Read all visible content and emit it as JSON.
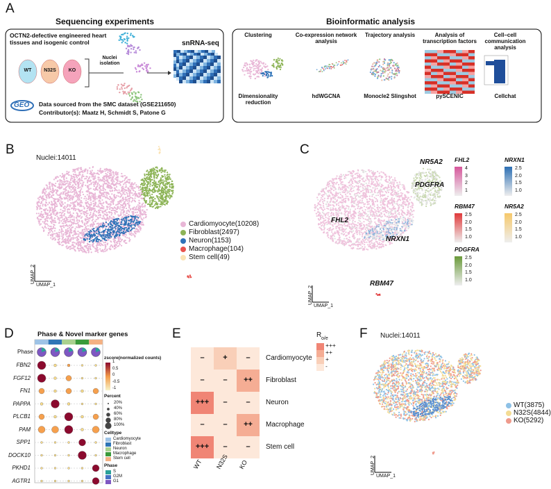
{
  "panelA": {
    "label": "A",
    "left_title": "Sequencing experiments",
    "right_title": "Bioinformatic analysis",
    "tissue_text": "OCTN2-defective engineered heart tissues and isogenic control",
    "samples": [
      "WT",
      "N32S",
      "KO"
    ],
    "nuclei_isolation": "Nuclei isolation",
    "snrnaseq": "snRNA-seq",
    "geo": "GEO",
    "source": "Data sourced from the SMC dataset (GSE211650)",
    "contributors": "Contributor(s):  Maatz H, Schmidt S, Patone G",
    "analyses": [
      {
        "title": "Clustering",
        "method": "Dimensionality reduction"
      },
      {
        "title": "Co-expression network analysis",
        "method": "hdWGCNA"
      },
      {
        "title": "Trajectory analysis",
        "method": "Monocle2 Slingshot"
      },
      {
        "title": "Analysis of transcription factors",
        "method": "pySCENIC"
      },
      {
        "title": "Cell–cell communication analysis",
        "method": "Cellchat"
      }
    ]
  },
  "panelB": {
    "label": "B",
    "nuclei": "Nuclei:14011",
    "x_axis": "UMAP_1",
    "y_axis": "UMAP_2",
    "celltypes": [
      {
        "name": "Cardiomyocyte(10208)",
        "color": "#e8b6d6"
      },
      {
        "name": "Fibroblast(2497)",
        "color": "#8db457"
      },
      {
        "name": "Neuron(1153)",
        "color": "#2e72b8"
      },
      {
        "name": "Macrophage(104)",
        "color": "#e8534e"
      },
      {
        "name": "Stem cell(49)",
        "color": "#fbe3b4"
      }
    ]
  },
  "panelC": {
    "label": "C",
    "x_axis": "UMAP_1",
    "y_axis": "UMAP_2",
    "genes_on_map": [
      "NR5A2",
      "PDGFRA",
      "FHL2",
      "NRXN1",
      "RBM47"
    ],
    "colorbars": [
      {
        "gene": "FHL2",
        "color": "#d6579b",
        "ticks": [
          "4",
          "3",
          "2",
          "1"
        ]
      },
      {
        "gene": "NRXN1",
        "color": "#2c6fb3",
        "ticks": [
          "2.5",
          "2.0",
          "1.5",
          "1.0"
        ]
      },
      {
        "gene": "RBM47",
        "color": "#e0393a",
        "ticks": [
          "2.5",
          "2.0",
          "1.5",
          "1.0"
        ]
      },
      {
        "gene": "NR5A2",
        "color": "#f6c86a",
        "ticks": [
          "2.5",
          "2.0",
          "1.5",
          "1.0"
        ]
      },
      {
        "gene": "PDGFRA",
        "color": "#6a9a3a",
        "ticks": [
          "2.5",
          "2.0",
          "1.5",
          "1.0"
        ]
      }
    ]
  },
  "panelD": {
    "label": "D",
    "title": "Phase & Novel marker genes",
    "phase_row": "Phase",
    "genes": [
      "FBN2",
      "FGF12",
      "FN1",
      "PAPPA",
      "PLCB1",
      "PAM",
      "SPP1",
      "DOCK10",
      "PKHD1",
      "AGTR1"
    ],
    "zscore_title": "zscore(normalized counts)",
    "zscore_ticks": [
      "1",
      "0.5",
      "0",
      "-0.5",
      "-1"
    ],
    "percent_title": "Percent",
    "percent_ticks": [
      "20%",
      "40%",
      "60%",
      "80%",
      "100%"
    ],
    "celltype_title": "Celltype",
    "celltypes": [
      {
        "name": "Cardiomyocyte",
        "color": "#9dc3e6"
      },
      {
        "name": "Fibroblast",
        "color": "#2e75b6"
      },
      {
        "name": "Neuron",
        "color": "#a9d18e"
      },
      {
        "name": "Macrophage",
        "color": "#3a9a3a"
      },
      {
        "name": "Stem cell",
        "color": "#f4b183"
      }
    ],
    "phase_title": "Phase",
    "phases": [
      {
        "name": "S",
        "color": "#2aa198"
      },
      {
        "name": "G2M",
        "color": "#4472c4"
      },
      {
        "name": "G1",
        "color": "#7e57c2"
      }
    ]
  },
  "panelE": {
    "label": "E",
    "rows": [
      "Cardiomyocyte",
      "Fibroblast",
      "Neuron",
      "Macrophage",
      "Stem cell"
    ],
    "columns": [
      "WT",
      "N32S",
      "KO"
    ],
    "cells": [
      [
        "–",
        "+",
        "–"
      ],
      [
        "–",
        "–",
        "++"
      ],
      [
        "+++",
        "–",
        "–"
      ],
      [
        "–",
        "–",
        "++"
      ],
      [
        "+++",
        "–",
        "–"
      ]
    ],
    "legend_title": {
      "main": "R",
      "sub": "o/e"
    },
    "legend": [
      {
        "label": "+++",
        "color": "#f08575"
      },
      {
        "label": "++",
        "color": "#f5ad94"
      },
      {
        "label": "+",
        "color": "#f9cfb8"
      },
      {
        "label": "-",
        "color": "#fde8da"
      }
    ]
  },
  "panelF": {
    "label": "F",
    "nuclei": "Nuclei:14011",
    "x_axis": "UMAP_1",
    "y_axis": "UMAP_2",
    "groups": [
      {
        "name": "WT(3875)",
        "color": "#8ec1e6"
      },
      {
        "name": "N32S(4844)",
        "color": "#f4dc94"
      },
      {
        "name": "KO(5292)",
        "color": "#ef9a8c"
      }
    ]
  }
}
